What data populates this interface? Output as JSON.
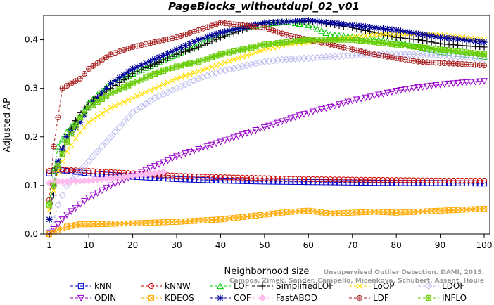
{
  "chart_data": {
    "type": "line",
    "title": "PageBlocks_withoutdupl_02_v01",
    "xlabel": "Neighborhood size",
    "ylabel": "Adjusted AP",
    "xlim": [
      1,
      100
    ],
    "ylim": [
      0,
      0.45
    ],
    "xticks": [
      1,
      10,
      20,
      30,
      40,
      50,
      60,
      70,
      80,
      90,
      100
    ],
    "yticks": [
      0.0,
      0.1,
      0.2,
      0.3,
      0.4
    ],
    "grid": false,
    "legend_position": "bottom",
    "watermark": {
      "line1": "Unsupervised Outlier Detection. DAMI, 2015.",
      "line2": "Campos, Zimek, Sander, Campello, Micenkova, Schubert, Assent, Houle"
    },
    "series": [
      {
        "name": "kNN",
        "color": "#0000cc",
        "marker": "square",
        "dash": "4,3",
        "points": [
          [
            1,
            0.125
          ],
          [
            2,
            0.13
          ],
          [
            3,
            0.132
          ],
          [
            5,
            0.13
          ],
          [
            10,
            0.125
          ],
          [
            20,
            0.118
          ],
          [
            30,
            0.113
          ],
          [
            40,
            0.11
          ],
          [
            50,
            0.108
          ],
          [
            60,
            0.107
          ],
          [
            70,
            0.106
          ],
          [
            80,
            0.105
          ],
          [
            90,
            0.105
          ],
          [
            100,
            0.104
          ]
        ]
      },
      {
        "name": "kNNW",
        "color": "#cc0000",
        "marker": "circle",
        "dash": "4,3",
        "points": [
          [
            1,
            0.13
          ],
          [
            2,
            0.132
          ],
          [
            3,
            0.133
          ],
          [
            5,
            0.132
          ],
          [
            10,
            0.13
          ],
          [
            20,
            0.125
          ],
          [
            30,
            0.12
          ],
          [
            40,
            0.117
          ],
          [
            50,
            0.115
          ],
          [
            60,
            0.113
          ],
          [
            70,
            0.112
          ],
          [
            80,
            0.111
          ],
          [
            90,
            0.11
          ],
          [
            100,
            0.11
          ]
        ]
      },
      {
        "name": "LOF",
        "color": "#00cc00",
        "marker": "triangle-up",
        "dash": "4,3",
        "points": [
          [
            1,
            0.065
          ],
          [
            2,
            0.13
          ],
          [
            3,
            0.18
          ],
          [
            5,
            0.21
          ],
          [
            8,
            0.24
          ],
          [
            10,
            0.27
          ],
          [
            15,
            0.31
          ],
          [
            20,
            0.33
          ],
          [
            25,
            0.35
          ],
          [
            30,
            0.37
          ],
          [
            35,
            0.39
          ],
          [
            40,
            0.41
          ],
          [
            45,
            0.425
          ],
          [
            50,
            0.432
          ],
          [
            55,
            0.437
          ],
          [
            60,
            0.43
          ],
          [
            65,
            0.41
          ],
          [
            70,
            0.405
          ],
          [
            75,
            0.4
          ],
          [
            80,
            0.395
          ],
          [
            85,
            0.385
          ],
          [
            90,
            0.375
          ],
          [
            95,
            0.37
          ],
          [
            100,
            0.365
          ]
        ]
      },
      {
        "name": "SimplifiedLOF",
        "color": "#000000",
        "marker": "plus",
        "dash": "4,3",
        "points": [
          [
            1,
            0.03
          ],
          [
            2,
            0.08
          ],
          [
            3,
            0.14
          ],
          [
            5,
            0.2
          ],
          [
            8,
            0.25
          ],
          [
            10,
            0.27
          ],
          [
            15,
            0.3
          ],
          [
            20,
            0.33
          ],
          [
            25,
            0.35
          ],
          [
            30,
            0.37
          ],
          [
            35,
            0.385
          ],
          [
            40,
            0.405
          ],
          [
            45,
            0.42
          ],
          [
            50,
            0.435
          ],
          [
            55,
            0.437
          ],
          [
            60,
            0.438
          ],
          [
            65,
            0.432
          ],
          [
            70,
            0.425
          ],
          [
            75,
            0.415
          ],
          [
            80,
            0.405
          ],
          [
            85,
            0.4
          ],
          [
            90,
            0.392
          ],
          [
            95,
            0.388
          ],
          [
            100,
            0.385
          ]
        ]
      },
      {
        "name": "LoOP",
        "color": "#ffe000",
        "marker": "x",
        "dash": "4,3",
        "points": [
          [
            1,
            0.05
          ],
          [
            2,
            0.09
          ],
          [
            3,
            0.13
          ],
          [
            5,
            0.17
          ],
          [
            8,
            0.21
          ],
          [
            10,
            0.23
          ],
          [
            15,
            0.26
          ],
          [
            20,
            0.28
          ],
          [
            25,
            0.3
          ],
          [
            30,
            0.32
          ],
          [
            35,
            0.335
          ],
          [
            40,
            0.35
          ],
          [
            45,
            0.365
          ],
          [
            50,
            0.38
          ],
          [
            55,
            0.39
          ],
          [
            60,
            0.395
          ],
          [
            65,
            0.4
          ],
          [
            70,
            0.405
          ],
          [
            75,
            0.41
          ],
          [
            80,
            0.412
          ],
          [
            85,
            0.412
          ],
          [
            90,
            0.41
          ],
          [
            95,
            0.405
          ],
          [
            100,
            0.4
          ]
        ]
      },
      {
        "name": "LDOF",
        "color": "#bbbbee",
        "marker": "diamond",
        "dash": "4,3",
        "points": [
          [
            1,
            0.005
          ],
          [
            2,
            0.03
          ],
          [
            3,
            0.06
          ],
          [
            5,
            0.1
          ],
          [
            8,
            0.13
          ],
          [
            10,
            0.15
          ],
          [
            15,
            0.2
          ],
          [
            20,
            0.25
          ],
          [
            25,
            0.28
          ],
          [
            30,
            0.3
          ],
          [
            35,
            0.32
          ],
          [
            40,
            0.335
          ],
          [
            45,
            0.345
          ],
          [
            50,
            0.355
          ],
          [
            55,
            0.36
          ],
          [
            60,
            0.362
          ],
          [
            65,
            0.365
          ],
          [
            70,
            0.368
          ],
          [
            75,
            0.37
          ],
          [
            80,
            0.37
          ],
          [
            85,
            0.37
          ],
          [
            90,
            0.368
          ],
          [
            95,
            0.365
          ],
          [
            100,
            0.36
          ]
        ]
      },
      {
        "name": "ODIN",
        "color": "#9900cc",
        "marker": "triangle-down",
        "dash": "4,3",
        "points": [
          [
            1,
            0.002
          ],
          [
            2,
            0.01
          ],
          [
            5,
            0.04
          ],
          [
            10,
            0.075
          ],
          [
            15,
            0.1
          ],
          [
            20,
            0.12
          ],
          [
            25,
            0.14
          ],
          [
            30,
            0.16
          ],
          [
            35,
            0.175
          ],
          [
            40,
            0.19
          ],
          [
            45,
            0.205
          ],
          [
            50,
            0.22
          ],
          [
            55,
            0.235
          ],
          [
            60,
            0.25
          ],
          [
            65,
            0.262
          ],
          [
            70,
            0.275
          ],
          [
            75,
            0.285
          ],
          [
            80,
            0.295
          ],
          [
            85,
            0.302
          ],
          [
            90,
            0.308
          ],
          [
            95,
            0.312
          ],
          [
            100,
            0.315
          ]
        ]
      },
      {
        "name": "KDEOS",
        "color": "#ffaa00",
        "marker": "square-x",
        "dash": "4,3",
        "points": [
          [
            1,
            0.0
          ],
          [
            2,
            0.003
          ],
          [
            3,
            0.008
          ],
          [
            5,
            0.015
          ],
          [
            8,
            0.02
          ],
          [
            10,
            0.02
          ],
          [
            20,
            0.022
          ],
          [
            30,
            0.025
          ],
          [
            40,
            0.03
          ],
          [
            50,
            0.04
          ],
          [
            55,
            0.045
          ],
          [
            60,
            0.048
          ],
          [
            65,
            0.042
          ],
          [
            70,
            0.044
          ],
          [
            75,
            0.046
          ],
          [
            80,
            0.044
          ],
          [
            85,
            0.046
          ],
          [
            90,
            0.048
          ],
          [
            95,
            0.05
          ],
          [
            100,
            0.052
          ]
        ]
      },
      {
        "name": "COF",
        "color": "#000099",
        "marker": "star",
        "dash": "4,3",
        "points": [
          [
            1,
            0.03
          ],
          [
            2,
            0.1
          ],
          [
            3,
            0.15
          ],
          [
            5,
            0.2
          ],
          [
            8,
            0.23
          ],
          [
            10,
            0.26
          ],
          [
            15,
            0.31
          ],
          [
            20,
            0.34
          ],
          [
            25,
            0.36
          ],
          [
            30,
            0.38
          ],
          [
            35,
            0.4
          ],
          [
            40,
            0.415
          ],
          [
            45,
            0.425
          ],
          [
            50,
            0.435
          ],
          [
            55,
            0.437
          ],
          [
            60,
            0.44
          ],
          [
            65,
            0.435
          ],
          [
            70,
            0.43
          ],
          [
            75,
            0.425
          ],
          [
            80,
            0.42
          ],
          [
            85,
            0.412
          ],
          [
            90,
            0.405
          ],
          [
            95,
            0.4
          ],
          [
            100,
            0.395
          ]
        ]
      },
      {
        "name": "FastABOD",
        "color": "#ffbbee",
        "marker": "filled-diamond",
        "dash": "4,3",
        "points": [
          [
            1,
            0.105
          ],
          [
            2,
            0.107
          ],
          [
            3,
            0.108
          ],
          [
            5,
            0.108
          ],
          [
            10,
            0.11
          ],
          [
            15,
            0.115
          ],
          [
            20,
            0.12
          ],
          [
            25,
            0.125
          ],
          [
            27,
            0.128
          ]
        ]
      },
      {
        "name": "LDF",
        "color": "#aa2222",
        "marker": "circle-plus",
        "dash": "4,3",
        "points": [
          [
            1,
            0.07
          ],
          [
            2,
            0.18
          ],
          [
            3,
            0.24
          ],
          [
            4,
            0.3
          ],
          [
            6,
            0.31
          ],
          [
            8,
            0.32
          ],
          [
            10,
            0.34
          ],
          [
            15,
            0.37
          ],
          [
            20,
            0.385
          ],
          [
            25,
            0.395
          ],
          [
            30,
            0.405
          ],
          [
            35,
            0.42
          ],
          [
            40,
            0.435
          ],
          [
            45,
            0.43
          ],
          [
            50,
            0.425
          ],
          [
            55,
            0.41
          ],
          [
            60,
            0.4
          ],
          [
            65,
            0.39
          ],
          [
            70,
            0.38
          ],
          [
            75,
            0.37
          ],
          [
            80,
            0.362
          ],
          [
            85,
            0.355
          ],
          [
            90,
            0.352
          ],
          [
            95,
            0.35
          ],
          [
            100,
            0.347
          ]
        ]
      },
      {
        "name": "INFLO",
        "color": "#66cc00",
        "marker": "square-star",
        "dash": "4,3",
        "points": [
          [
            1,
            0.06
          ],
          [
            2,
            0.1
          ],
          [
            3,
            0.14
          ],
          [
            5,
            0.19
          ],
          [
            8,
            0.24
          ],
          [
            10,
            0.26
          ],
          [
            15,
            0.29
          ],
          [
            20,
            0.31
          ],
          [
            25,
            0.33
          ],
          [
            30,
            0.345
          ],
          [
            35,
            0.355
          ],
          [
            40,
            0.37
          ],
          [
            45,
            0.38
          ],
          [
            50,
            0.39
          ],
          [
            55,
            0.395
          ],
          [
            60,
            0.4
          ],
          [
            65,
            0.4
          ],
          [
            70,
            0.4
          ],
          [
            75,
            0.395
          ],
          [
            80,
            0.39
          ],
          [
            85,
            0.385
          ],
          [
            90,
            0.38
          ],
          [
            95,
            0.375
          ],
          [
            100,
            0.37
          ]
        ]
      }
    ],
    "legend_order": [
      "kNN",
      "kNNW",
      "LOF",
      "SimplifiedLOF",
      "LoOP",
      "LDOF",
      "ODIN",
      "KDEOS",
      "COF",
      "FastABOD",
      "LDF",
      "INFLO"
    ]
  }
}
